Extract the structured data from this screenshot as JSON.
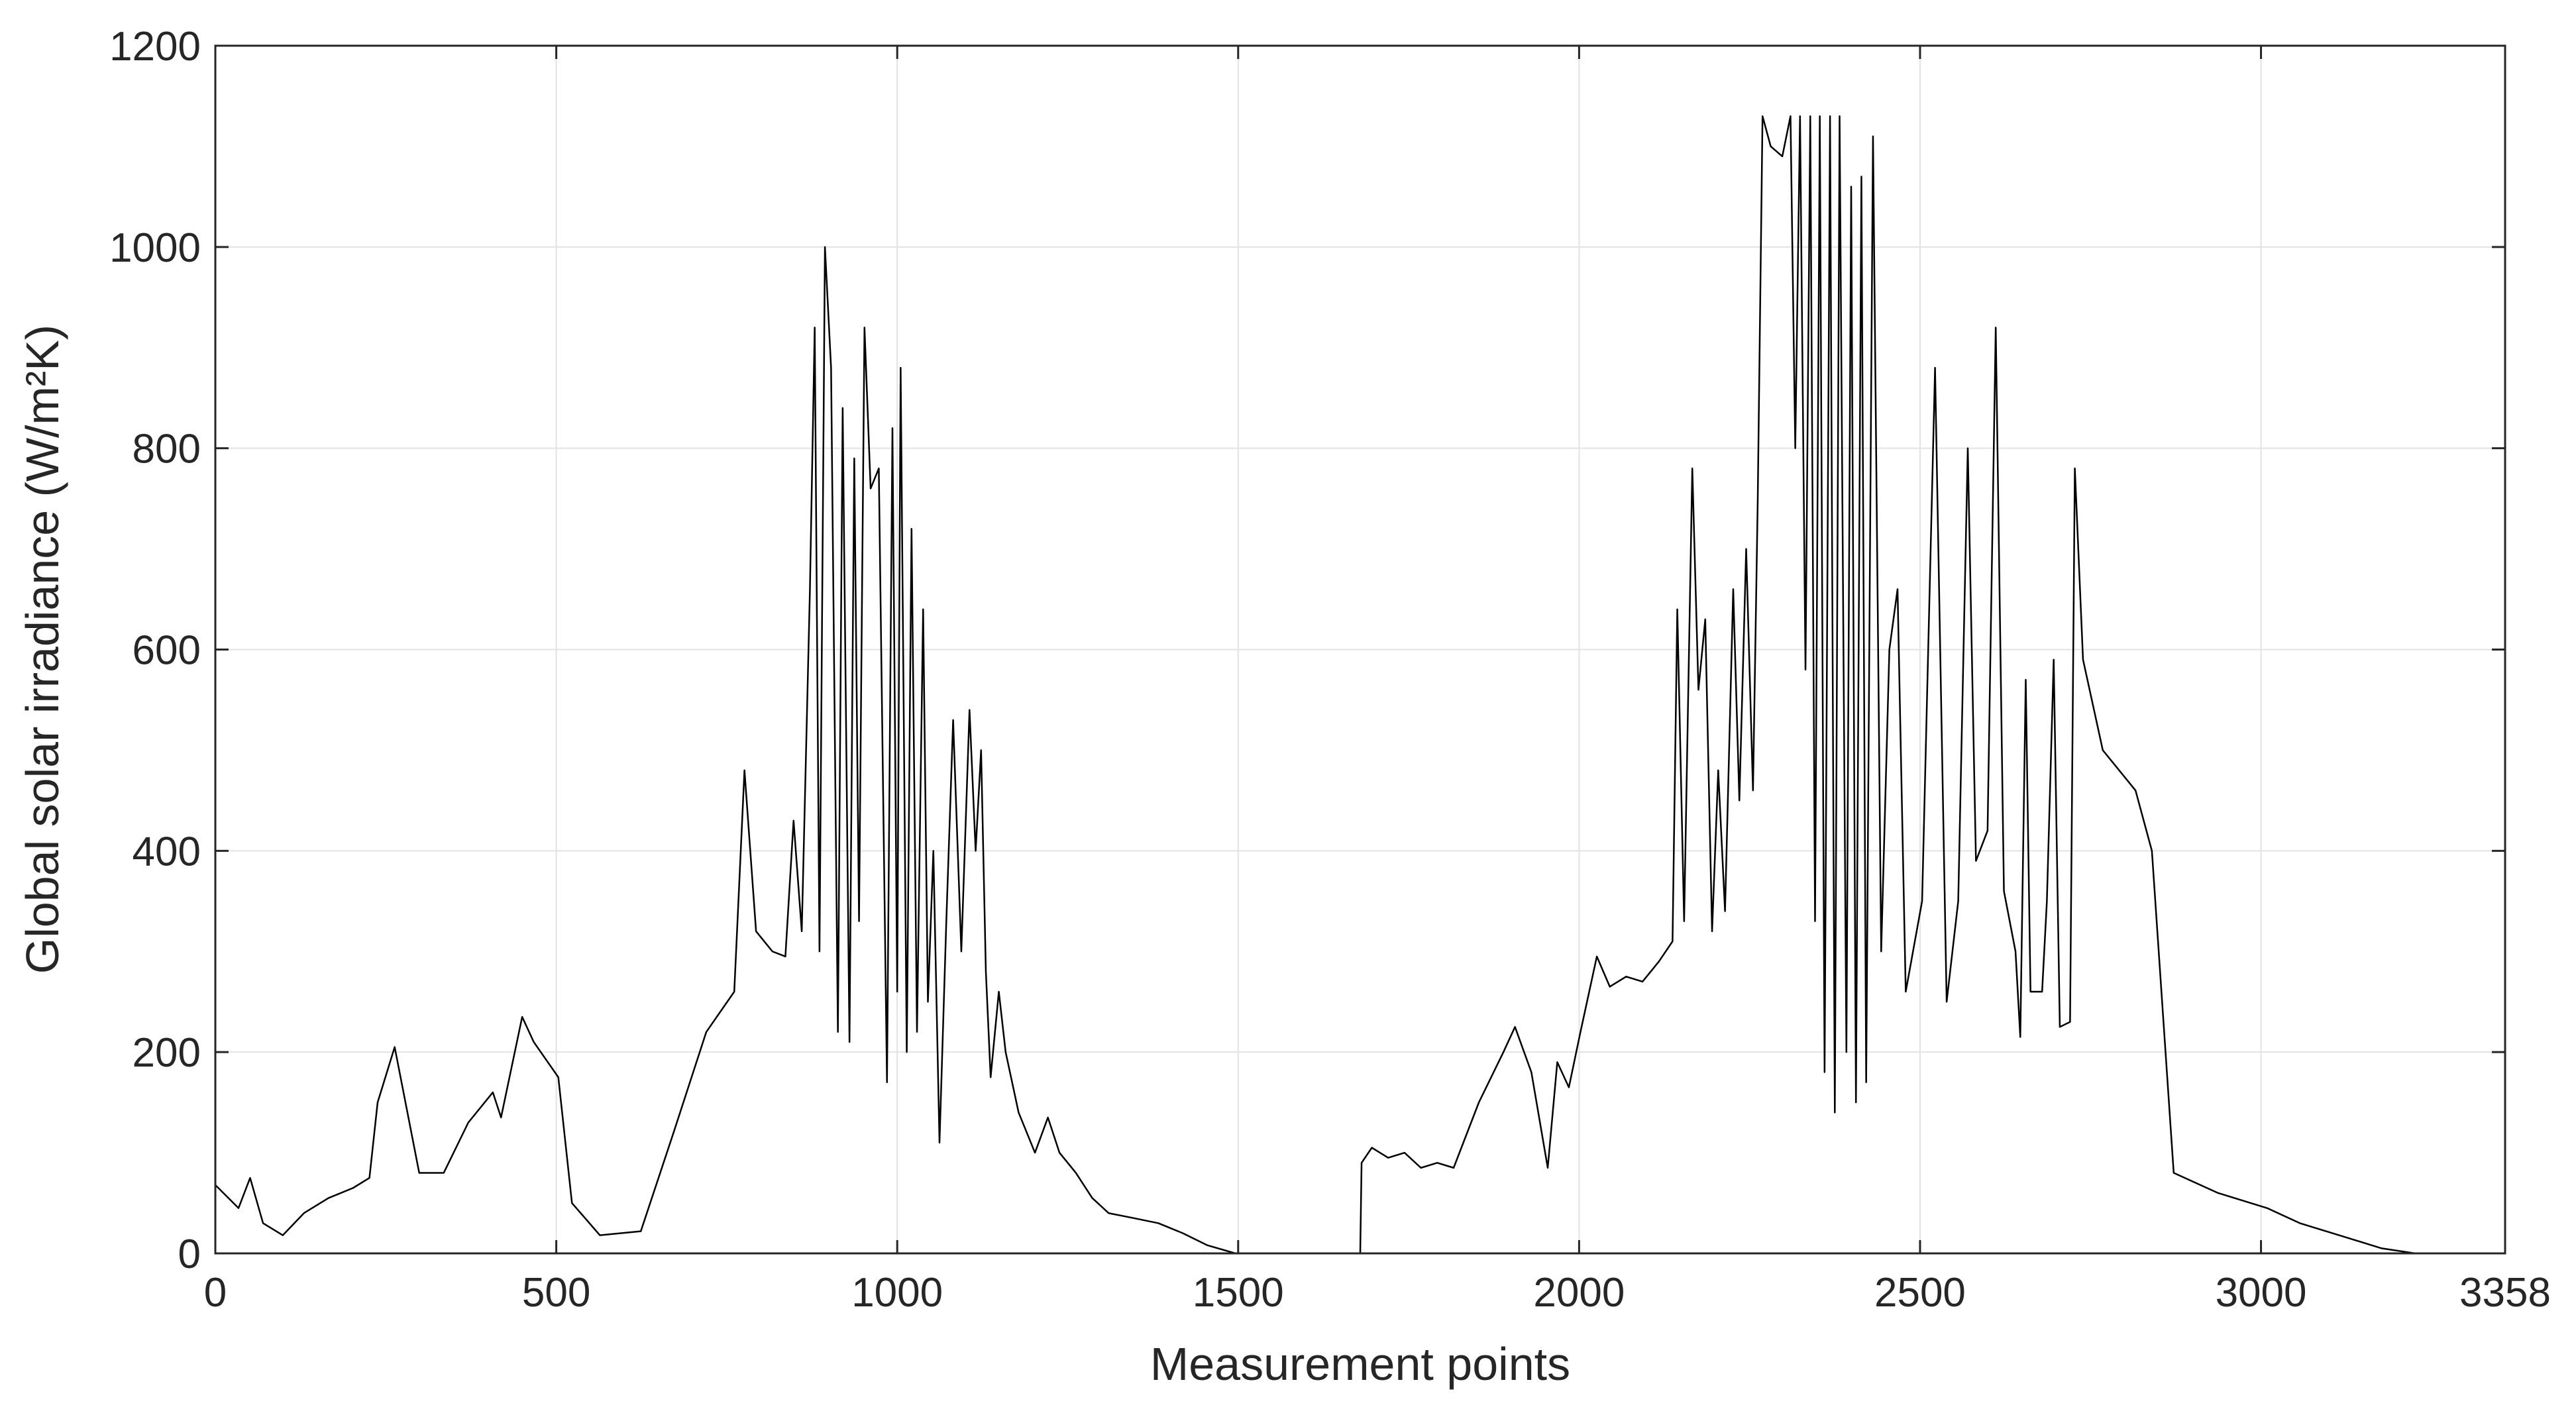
{
  "chart_data": {
    "type": "line",
    "x_label": "Measurement points",
    "y_label": "Global solar irradiance (W/m²K)",
    "xlim": [
      0,
      3358
    ],
    "xticks": [
      0,
      500,
      1000,
      1500,
      2000,
      2500,
      3000,
      3358
    ],
    "ylim": [
      0,
      1200
    ],
    "yticks": [
      0,
      200,
      400,
      600,
      800,
      1000,
      1200
    ],
    "grid": true,
    "color": "#000000",
    "x": [
      0,
      34,
      51,
      70,
      99,
      130,
      166,
      202,
      226,
      238,
      263,
      299,
      335,
      371,
      407,
      419,
      450,
      467,
      503,
      523,
      564,
      624,
      672,
      720,
      761,
      776,
      793,
      817,
      836,
      848,
      860,
      872,
      879,
      886,
      894,
      903,
      913,
      920,
      930,
      937,
      944,
      952,
      961,
      973,
      985,
      993,
      1000,
      1005,
      1014,
      1021,
      1029,
      1038,
      1045,
      1053,
      1062,
      1072,
      1082,
      1094,
      1106,
      1115,
      1123,
      1130,
      1137,
      1149,
      1159,
      1178,
      1202,
      1221,
      1238,
      1262,
      1286,
      1310,
      1347,
      1383,
      1419,
      1455,
      1496,
      1679,
      1681,
      1696,
      1720,
      1744,
      1768,
      1792,
      1816,
      1853,
      1889,
      1906,
      1930,
      1954,
      1968,
      1985,
      2002,
      2026,
      2045,
      2069,
      2093,
      2117,
      2137,
      2144,
      2154,
      2166,
      2175,
      2185,
      2195,
      2204,
      2214,
      2226,
      2235,
      2245,
      2255,
      2262,
      2269,
      2281,
      2298,
      2310,
      2317,
      2324,
      2332,
      2339,
      2346,
      2353,
      2360,
      2368,
      2375,
      2382,
      2392,
      2399,
      2406,
      2414,
      2421,
      2431,
      2443,
      2455,
      2467,
      2479,
      2503,
      2522,
      2539,
      2556,
      2570,
      2582,
      2599,
      2611,
      2623,
      2640,
      2647,
      2655,
      2662,
      2679,
      2686,
      2696,
      2705,
      2720,
      2727,
      2739,
      2768,
      2816,
      2840,
      2860,
      2872,
      2937,
      3009,
      3057,
      3129,
      3177,
      3226,
      3358
    ],
    "values": [
      68,
      45,
      75,
      30,
      18,
      40,
      55,
      65,
      75,
      150,
      205,
      80,
      80,
      130,
      160,
      135,
      235,
      210,
      175,
      50,
      18,
      22,
      120,
      220,
      260,
      480,
      320,
      300,
      295,
      430,
      320,
      660,
      920,
      300,
      1000,
      880,
      220,
      840,
      210,
      790,
      330,
      920,
      760,
      780,
      170,
      820,
      260,
      880,
      200,
      720,
      220,
      640,
      250,
      400,
      110,
      330,
      530,
      300,
      540,
      400,
      500,
      280,
      175,
      260,
      200,
      140,
      100,
      135,
      100,
      80,
      55,
      40,
      35,
      30,
      20,
      8,
      0,
      0,
      90,
      105,
      95,
      100,
      85,
      90,
      85,
      150,
      200,
      225,
      180,
      85,
      190,
      165,
      220,
      295,
      265,
      275,
      270,
      290,
      310,
      640,
      330,
      780,
      560,
      630,
      320,
      480,
      340,
      660,
      450,
      700,
      460,
      750,
      1130,
      1100,
      1090,
      1130,
      800,
      1130,
      580,
      1130,
      330,
      1130,
      180,
      1130,
      140,
      1130,
      200,
      1060,
      150,
      1070,
      170,
      1110,
      300,
      600,
      660,
      260,
      350,
      880,
      250,
      350,
      800,
      390,
      420,
      920,
      360,
      300,
      215,
      570,
      260,
      260,
      350,
      590,
      225,
      230,
      780,
      590,
      500,
      460,
      400,
      200,
      80,
      60,
      45,
      30,
      15,
      5,
      0,
      0
    ]
  }
}
